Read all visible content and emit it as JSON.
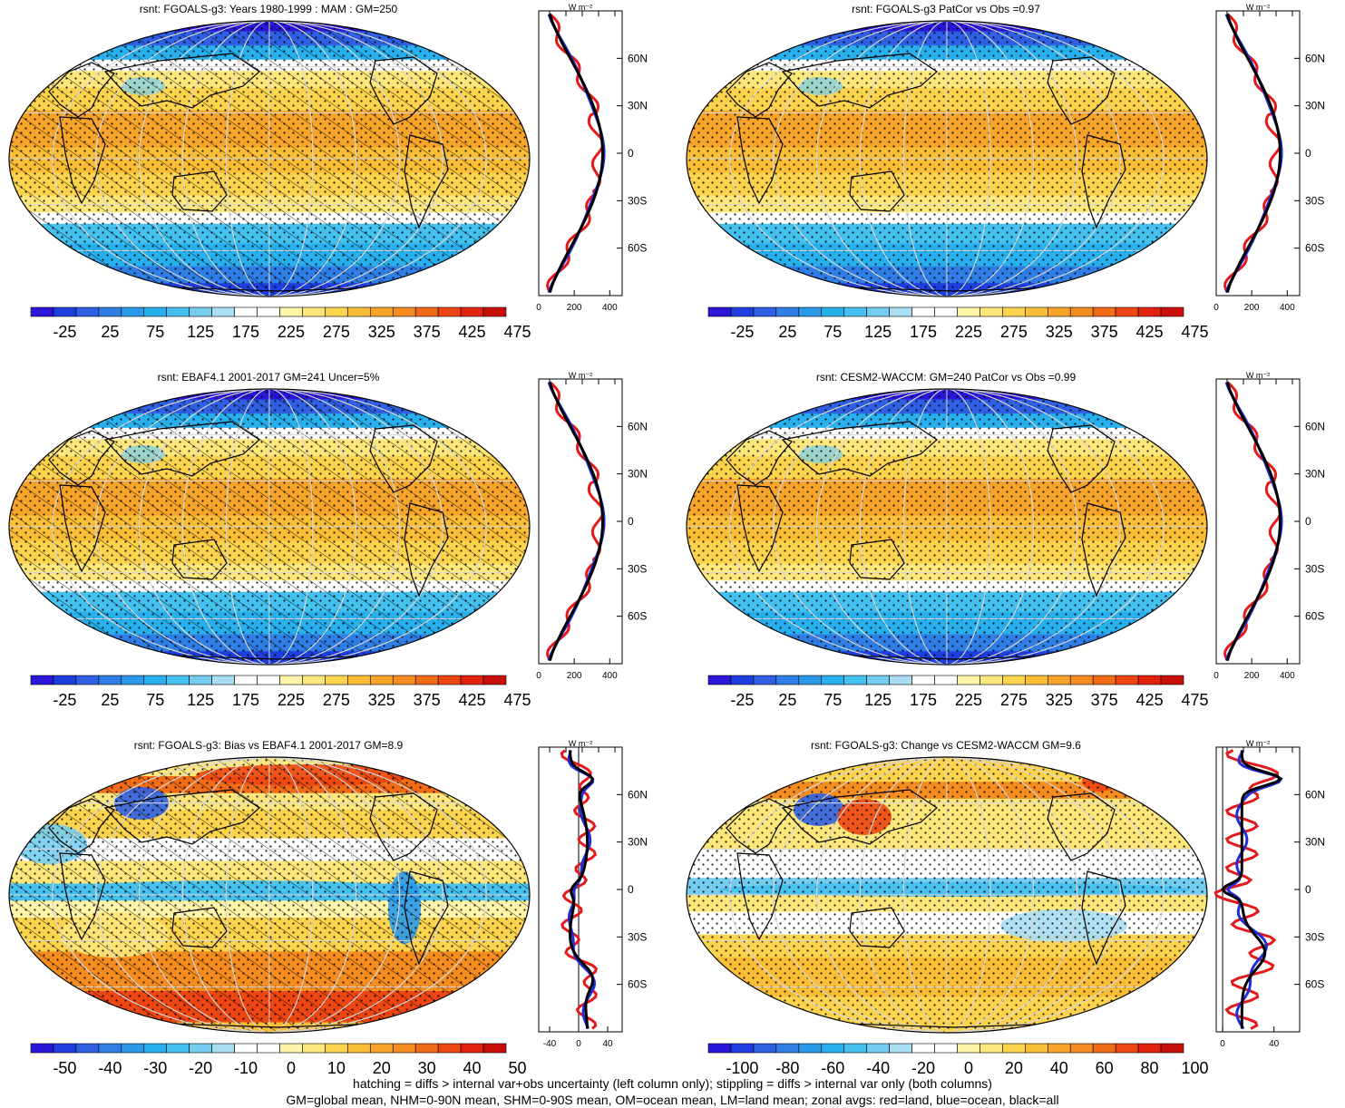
{
  "panels": [
    {
      "id": "p1",
      "title": "rsnt: FGOALS-g3: Years 1980-1999 : MAM : GM=250",
      "kind": "abs",
      "hatch": true,
      "zonal_axis": {
        "ticks": [
          "0",
          "200",
          "400"
        ],
        "unit": "W m⁻²"
      }
    },
    {
      "id": "p2",
      "title": "rsnt: FGOALS-g3 PatCor vs Obs =0.97",
      "kind": "abs",
      "hatch": false,
      "zonal_axis": {
        "ticks": [
          "0",
          "200",
          "400"
        ],
        "unit": "W m⁻²"
      }
    },
    {
      "id": "p3",
      "title": "rsnt: EBAF4.1 2001-2017 GM=241 Uncer=5%",
      "kind": "abs",
      "hatch": true,
      "zonal_axis": {
        "ticks": [
          "0",
          "200",
          "400"
        ],
        "unit": "W m⁻²"
      }
    },
    {
      "id": "p4",
      "title": "rsnt: CESM2-WACCM: GM=240 PatCor vs Obs =0.99",
      "kind": "abs",
      "hatch": false,
      "zonal_axis": {
        "ticks": [
          "0",
          "200",
          "400"
        ],
        "unit": "W m⁻²"
      }
    },
    {
      "id": "p5",
      "title": "rsnt: FGOALS-g3: Bias vs EBAF4.1 2001-2017 GM=8.9",
      "kind": "bias",
      "hatch": true,
      "zonal_axis": {
        "ticks": [
          "-40",
          "0",
          "40"
        ],
        "unit": "W m⁻²"
      }
    },
    {
      "id": "p6",
      "title": "rsnt: FGOALS-g3: Change vs CESM2-WACCM GM=9.6",
      "kind": "change",
      "hatch": false,
      "zonal_axis": {
        "ticks": [
          "0",
          "40"
        ],
        "unit": "W m⁻²"
      }
    }
  ],
  "lat_labels": [
    "60N",
    "30N",
    "0",
    "30S",
    "60S"
  ],
  "colorbars": {
    "abs": {
      "labels": [
        "-25",
        "25",
        "75",
        "125",
        "175",
        "225",
        "275",
        "325",
        "375",
        "425",
        "475"
      ]
    },
    "bias": {
      "labels": [
        "-50",
        "-40",
        "-30",
        "-20",
        "-10",
        "0",
        "10",
        "20",
        "30",
        "40",
        "50"
      ]
    },
    "change": {
      "labels": [
        "-100",
        "-80",
        "-60",
        "-40",
        "-20",
        "0",
        "20",
        "40",
        "60",
        "80",
        "100"
      ]
    }
  },
  "palette": [
    "#2a16d8",
    "#1e3ee0",
    "#2f5fe3",
    "#2f7ee6",
    "#2a99e8",
    "#28b0ee",
    "#45c1f0",
    "#74cdf0",
    "#a9ddf2",
    "#ffffff",
    "#ffffff",
    "#fff4a8",
    "#fde67a",
    "#fcd34d",
    "#f9bd36",
    "#f7a52a",
    "#f58c1f",
    "#f26c17",
    "#ee4612",
    "#e3220d",
    "#c90f0a"
  ],
  "legend_lines": {
    "land": "#e31a1c",
    "ocean": "#1f2ddb",
    "all": "#000000"
  },
  "footer": {
    "line1": "hatching = diffs > internal var+obs uncertainty (left column only); stippling = diffs > internal var only (both columns)",
    "line2": "GM=global mean, NHM=0-90N mean, SHM=0-90S mean, OM=ocean mean, LM=land mean; zonal avgs: red=land, blue=ocean, black=all"
  }
}
